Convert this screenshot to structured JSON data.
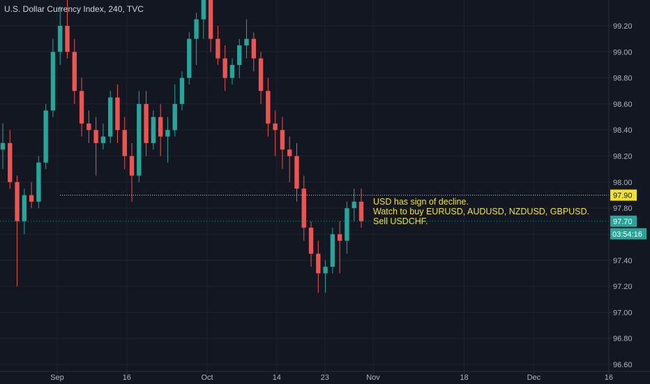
{
  "header": {
    "title": "U.S. Dollar Currency Index, 240, TVC"
  },
  "colors": {
    "background": "#131722",
    "up": "#26a69a",
    "down": "#ef5350",
    "level_line": "#f0e130",
    "axis_text": "#b2b5be",
    "price_line": "#26a69a"
  },
  "annotation": {
    "lines": [
      "USD has sign of decline.",
      "Watch to buy EURUSD, AUDUSD, NZDUSD, GBPUSD.",
      "Sell USDCHF."
    ]
  },
  "chart_data": {
    "type": "candlestick",
    "title": "U.S. Dollar Currency Index, 240, TVC",
    "y_ticks": [
      "99.20",
      "99.00",
      "98.80",
      "98.60",
      "98.40",
      "98.20",
      "98.00",
      "97.80",
      "97.60",
      "97.40",
      "97.20",
      "97.00",
      "96.80",
      "96.60"
    ],
    "x_ticks": [
      {
        "label": "Sep",
        "day": 3
      },
      {
        "label": "16",
        "day": 16
      },
      {
        "label": "Oct",
        "day": 31
      },
      {
        "label": "14",
        "day": 44
      },
      {
        "label": "23",
        "day": 53
      },
      {
        "label": "Nov",
        "day": 62
      },
      {
        "label": "18",
        "day": 79
      },
      {
        "label": "Dec",
        "day": 92
      },
      {
        "label": "16",
        "day": 106
      }
    ],
    "ylim": [
      96.6,
      99.4
    ],
    "level_line": {
      "value": 97.9,
      "label": "97.90"
    },
    "last_price": {
      "value": 97.7,
      "label": "97.70",
      "countdown": "03:54:16"
    },
    "series": [
      {
        "date": "Aug 23",
        "open": 98.25,
        "high": 98.45,
        "low": 98.1,
        "close": 98.3
      },
      {
        "date": "Aug 24",
        "open": 98.3,
        "high": 98.4,
        "low": 97.95,
        "close": 98.0
      },
      {
        "date": "Aug 25",
        "open": 98.0,
        "high": 98.05,
        "low": 97.2,
        "close": 97.7
      },
      {
        "date": "Aug 26",
        "open": 97.7,
        "high": 97.95,
        "low": 97.6,
        "close": 97.9
      },
      {
        "date": "Aug 27",
        "open": 97.9,
        "high": 98.0,
        "low": 97.8,
        "close": 97.85
      },
      {
        "date": "Aug 28",
        "open": 97.85,
        "high": 98.2,
        "low": 97.8,
        "close": 98.15
      },
      {
        "date": "Aug 29",
        "open": 98.15,
        "high": 98.6,
        "low": 98.1,
        "close": 98.55
      },
      {
        "date": "Aug 30",
        "open": 98.55,
        "high": 99.1,
        "low": 98.5,
        "close": 99.0
      },
      {
        "date": "Sep 2",
        "open": 99.0,
        "high": 99.35,
        "low": 98.9,
        "close": 99.2
      },
      {
        "date": "Sep 3",
        "open": 99.2,
        "high": 99.4,
        "low": 98.95,
        "close": 99.0
      },
      {
        "date": "Sep 4",
        "open": 99.0,
        "high": 99.1,
        "low": 98.6,
        "close": 98.7
      },
      {
        "date": "Sep 5",
        "open": 98.7,
        "high": 98.8,
        "low": 98.35,
        "close": 98.45
      },
      {
        "date": "Sep 6",
        "open": 98.45,
        "high": 98.55,
        "low": 98.3,
        "close": 98.4
      },
      {
        "date": "Sep 9",
        "open": 98.4,
        "high": 98.5,
        "low": 98.05,
        "close": 98.3
      },
      {
        "date": "Sep 10",
        "open": 98.3,
        "high": 98.45,
        "low": 98.25,
        "close": 98.35
      },
      {
        "date": "Sep 11",
        "open": 98.35,
        "high": 98.7,
        "low": 98.3,
        "close": 98.65
      },
      {
        "date": "Sep 12",
        "open": 98.65,
        "high": 98.75,
        "low": 98.3,
        "close": 98.4
      },
      {
        "date": "Sep 13",
        "open": 98.4,
        "high": 98.5,
        "low": 98.1,
        "close": 98.2
      },
      {
        "date": "Sep 16",
        "open": 98.2,
        "high": 98.3,
        "low": 97.85,
        "close": 98.05
      },
      {
        "date": "Sep 17",
        "open": 98.05,
        "high": 98.7,
        "low": 98.0,
        "close": 98.6
      },
      {
        "date": "Sep 18",
        "open": 98.6,
        "high": 98.7,
        "low": 98.2,
        "close": 98.3
      },
      {
        "date": "Sep 19",
        "open": 98.3,
        "high": 98.55,
        "low": 98.25,
        "close": 98.5
      },
      {
        "date": "Sep 20",
        "open": 98.5,
        "high": 98.6,
        "low": 98.2,
        "close": 98.35
      },
      {
        "date": "Sep 23",
        "open": 98.35,
        "high": 98.5,
        "low": 98.15,
        "close": 98.4
      },
      {
        "date": "Sep 24",
        "open": 98.4,
        "high": 98.75,
        "low": 98.35,
        "close": 98.6
      },
      {
        "date": "Sep 25",
        "open": 98.6,
        "high": 98.85,
        "low": 98.55,
        "close": 98.8
      },
      {
        "date": "Sep 26",
        "open": 98.8,
        "high": 99.15,
        "low": 98.75,
        "close": 99.1
      },
      {
        "date": "Sep 27",
        "open": 99.1,
        "high": 99.3,
        "low": 98.9,
        "close": 99.25
      },
      {
        "date": "Sep 30",
        "open": 99.25,
        "high": 99.45,
        "low": 99.1,
        "close": 99.4
      },
      {
        "date": "Oct 1",
        "open": 99.4,
        "high": 99.45,
        "low": 99.0,
        "close": 99.1
      },
      {
        "date": "Oct 2",
        "open": 99.1,
        "high": 99.2,
        "low": 98.9,
        "close": 98.95
      },
      {
        "date": "Oct 3",
        "open": 98.95,
        "high": 99.05,
        "low": 98.7,
        "close": 98.8
      },
      {
        "date": "Oct 4",
        "open": 98.8,
        "high": 98.95,
        "low": 98.75,
        "close": 98.9
      },
      {
        "date": "Oct 7",
        "open": 98.9,
        "high": 99.1,
        "low": 98.8,
        "close": 99.05
      },
      {
        "date": "Oct 8",
        "open": 99.05,
        "high": 99.25,
        "low": 98.95,
        "close": 99.1
      },
      {
        "date": "Oct 9",
        "open": 99.1,
        "high": 99.15,
        "low": 98.85,
        "close": 98.95
      },
      {
        "date": "Oct 10",
        "open": 98.95,
        "high": 99.0,
        "low": 98.6,
        "close": 98.7
      },
      {
        "date": "Oct 11",
        "open": 98.7,
        "high": 98.8,
        "low": 98.35,
        "close": 98.45
      },
      {
        "date": "Oct 14",
        "open": 98.45,
        "high": 98.55,
        "low": 98.2,
        "close": 98.4
      },
      {
        "date": "Oct 15",
        "open": 98.4,
        "high": 98.5,
        "low": 98.1,
        "close": 98.25
      },
      {
        "date": "Oct 16",
        "open": 98.25,
        "high": 98.35,
        "low": 98.0,
        "close": 98.2
      },
      {
        "date": "Oct 17",
        "open": 98.2,
        "high": 98.3,
        "low": 97.85,
        "close": 97.95
      },
      {
        "date": "Oct 18",
        "open": 97.95,
        "high": 98.05,
        "low": 97.55,
        "close": 97.65
      },
      {
        "date": "Oct 21",
        "open": 97.65,
        "high": 97.7,
        "low": 97.35,
        "close": 97.45
      },
      {
        "date": "Oct 22",
        "open": 97.45,
        "high": 97.55,
        "low": 97.15,
        "close": 97.3
      },
      {
        "date": "Oct 23",
        "open": 97.3,
        "high": 97.4,
        "low": 97.15,
        "close": 97.35
      },
      {
        "date": "Oct 24",
        "open": 97.35,
        "high": 97.65,
        "low": 97.3,
        "close": 97.6
      },
      {
        "date": "Oct 25",
        "open": 97.6,
        "high": 97.7,
        "low": 97.3,
        "close": 97.55
      },
      {
        "date": "Oct 28",
        "open": 97.55,
        "high": 97.85,
        "low": 97.45,
        "close": 97.8
      },
      {
        "date": "Oct 29",
        "open": 97.8,
        "high": 97.95,
        "low": 97.7,
        "close": 97.85
      },
      {
        "date": "Oct 30",
        "open": 97.85,
        "high": 97.95,
        "low": 97.65,
        "close": 97.7
      }
    ]
  }
}
